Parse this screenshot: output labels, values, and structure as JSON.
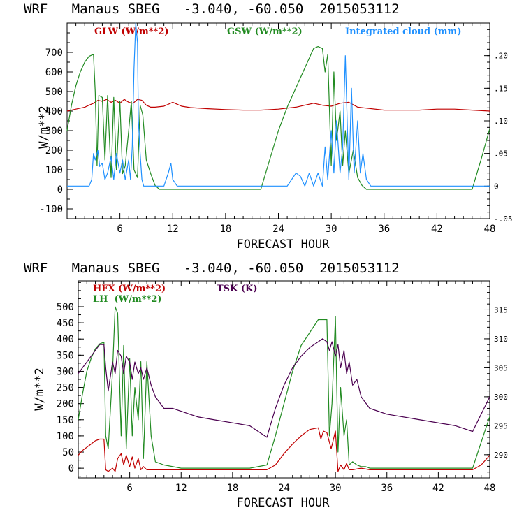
{
  "chart_data": [
    {
      "type": "line",
      "title": "WRF   Manaus SBEG   -3.040, -60.050  2015053112",
      "xlabel": "FORECAST HOUR",
      "ylabel": "W/m**2",
      "xlim": [
        0,
        48
      ],
      "ylim": [
        -150,
        850
      ],
      "x_ticks": [
        "6",
        "12",
        "18",
        "24",
        "30",
        "36",
        "42",
        "48"
      ],
      "y_ticks": [
        "-100",
        "0",
        "100",
        "200",
        "300",
        "400",
        "500",
        "600",
        "700"
      ],
      "right_axis": {
        "ylim": [
          -0.05,
          0.25
        ],
        "ticks": [
          "-.05",
          "0",
          ".05",
          ".10",
          ".15",
          ".20"
        ]
      },
      "series": [
        {
          "name": "GLW (W/m**2)",
          "color": "#c00000",
          "axis": "left",
          "x": [
            0,
            1,
            2,
            3,
            3.5,
            4,
            4.5,
            5,
            5.5,
            6,
            6.5,
            7,
            7.5,
            8,
            8.5,
            9,
            9.5,
            10,
            11,
            12,
            13,
            14,
            16,
            18,
            20,
            22,
            24,
            26,
            27,
            28,
            29,
            30,
            31,
            32,
            33,
            34,
            36,
            38,
            40,
            42,
            44,
            46,
            48
          ],
          "y": [
            400,
            410,
            420,
            440,
            455,
            450,
            460,
            445,
            455,
            440,
            460,
            445,
            440,
            460,
            455,
            430,
            420,
            420,
            425,
            445,
            425,
            418,
            412,
            408,
            405,
            405,
            410,
            420,
            430,
            440,
            430,
            425,
            440,
            445,
            420,
            415,
            405,
            405,
            405,
            410,
            410,
            405,
            400
          ]
        },
        {
          "name": "GSW (W/m**2)",
          "color": "#228b22",
          "axis": "left",
          "x": [
            0,
            0.5,
            1,
            1.5,
            2,
            2.5,
            3,
            3.2,
            3.4,
            3.6,
            4,
            4.3,
            4.6,
            5,
            5.3,
            5.6,
            6,
            6.3,
            6.6,
            7,
            7.3,
            7.6,
            8,
            8.3,
            8.6,
            9,
            9.5,
            10,
            10.5,
            11,
            22,
            23,
            24,
            25,
            26,
            27,
            28,
            28.5,
            29,
            29.3,
            29.6,
            30,
            30.3,
            30.6,
            31,
            31.3,
            31.6,
            32,
            32.5,
            33,
            33.5,
            34,
            46,
            47,
            48
          ],
          "y": [
            300,
            430,
            530,
            600,
            650,
            680,
            690,
            500,
            120,
            480,
            470,
            150,
            480,
            60,
            470,
            100,
            450,
            80,
            120,
            300,
            450,
            100,
            60,
            430,
            380,
            150,
            80,
            20,
            0,
            0,
            0,
            150,
            300,
            420,
            520,
            620,
            720,
            730,
            720,
            600,
            690,
            120,
            600,
            250,
            400,
            120,
            300,
            80,
            200,
            60,
            20,
            0,
            0,
            150,
            310
          ]
        },
        {
          "name": "Integrated cloud (mm)",
          "color": "#1e90ff",
          "axis": "right",
          "x": [
            0,
            1,
            2,
            2.5,
            2.8,
            3,
            3.2,
            3.5,
            3.7,
            4,
            4.3,
            4.6,
            5,
            5.3,
            5.6,
            6,
            6.3,
            6.6,
            7,
            7.2,
            7.4,
            7.6,
            7.8,
            8,
            8.1,
            8.3,
            8.5,
            8.7,
            9,
            9.5,
            10,
            11,
            11.5,
            11.8,
            12,
            12.5,
            13,
            24,
            25,
            25.5,
            26,
            26.5,
            27,
            27.5,
            28,
            28.5,
            29,
            29.3,
            29.6,
            30,
            30.3,
            30.6,
            31,
            31.3,
            31.6,
            32,
            32.3,
            32.6,
            33,
            33.3,
            33.6,
            34,
            34.5,
            48
          ],
          "y": [
            0,
            0,
            0,
            0,
            0.01,
            0.05,
            0.04,
            0.055,
            0.03,
            0.035,
            0.01,
            0.02,
            0.045,
            0.01,
            0.05,
            0.02,
            0.04,
            0.01,
            0.04,
            0.01,
            0.06,
            0.18,
            0.25,
            0.22,
            0.1,
            0.05,
            0.01,
            0,
            0,
            0,
            0,
            0,
            0.02,
            0.035,
            0.01,
            0,
            0,
            0,
            0,
            0.01,
            0.02,
            0.015,
            0,
            0.02,
            0,
            0.02,
            0,
            0.06,
            0.01,
            0.085,
            0.02,
            0.1,
            0.02,
            0.06,
            0.2,
            0.01,
            0.15,
            0.02,
            0.1,
            0.02,
            0.05,
            0.01,
            0,
            0
          ]
        }
      ]
    },
    {
      "type": "line",
      "title": "WRF   Manaus SBEG   -3.040, -60.050  2015053112",
      "xlabel": "FORECAST HOUR",
      "ylabel": "W/m**2",
      "xlim": [
        0,
        48
      ],
      "ylim": [
        -30,
        580
      ],
      "x_ticks": [
        "6",
        "12",
        "18",
        "24",
        "30",
        "36",
        "42",
        "48"
      ],
      "y_ticks": [
        "0",
        "50",
        "100",
        "150",
        "200",
        "250",
        "300",
        "350",
        "400",
        "450",
        "500"
      ],
      "right_axis": {
        "ylim": [
          286,
          320
        ],
        "ticks": [
          "290",
          "295",
          "300",
          "305",
          "310",
          "315"
        ]
      },
      "series": [
        {
          "name": "HFX (W/m**2)",
          "color": "#c00000",
          "axis": "left",
          "x": [
            0,
            0.5,
            1,
            1.5,
            2,
            2.5,
            3,
            3.2,
            3.5,
            4,
            4.3,
            4.6,
            5,
            5.3,
            5.6,
            6,
            6.3,
            6.6,
            7,
            7.3,
            7.6,
            8,
            9,
            10,
            12,
            14,
            16,
            18,
            20,
            22,
            23,
            24,
            25,
            26,
            27,
            28,
            28.3,
            28.6,
            29,
            29.5,
            30,
            30.3,
            30.6,
            31,
            31.3,
            31.6,
            32,
            33,
            34,
            36,
            40,
            44,
            46,
            47,
            48
          ],
          "y": [
            40,
            55,
            65,
            75,
            85,
            90,
            90,
            -5,
            -10,
            0,
            -10,
            30,
            45,
            10,
            40,
            5,
            35,
            0,
            30,
            -5,
            5,
            -5,
            -5,
            -5,
            -5,
            -5,
            -5,
            -5,
            -5,
            -5,
            10,
            45,
            75,
            100,
            120,
            125,
            90,
            115,
            110,
            60,
            115,
            -10,
            10,
            -5,
            15,
            -5,
            -5,
            0,
            -5,
            -5,
            -5,
            -5,
            -5,
            10,
            40
          ]
        },
        {
          "name": "LH  (W/m**2)",
          "color": "#228b22",
          "axis": "left",
          "x": [
            0,
            0.5,
            1,
            1.5,
            2,
            2.5,
            3,
            3.2,
            3.5,
            4,
            4.3,
            4.6,
            5,
            5.3,
            5.6,
            6,
            6.3,
            6.6,
            7,
            7.3,
            7.6,
            8,
            8.5,
            9,
            10,
            12,
            14,
            16,
            18,
            20,
            22,
            23,
            24,
            25,
            26,
            27,
            28,
            28.5,
            29,
            29.3,
            29.6,
            30,
            30.3,
            30.6,
            31,
            31.3,
            31.6,
            32,
            32.5,
            33,
            33.5,
            34,
            36,
            40,
            44,
            46,
            47,
            48
          ],
          "y": [
            150,
            230,
            300,
            340,
            370,
            385,
            390,
            100,
            60,
            300,
            500,
            480,
            100,
            380,
            60,
            340,
            100,
            250,
            150,
            330,
            30,
            330,
            100,
            20,
            10,
            0,
            0,
            0,
            0,
            0,
            10,
            100,
            200,
            300,
            380,
            420,
            460,
            460,
            460,
            100,
            200,
            470,
            50,
            250,
            100,
            150,
            10,
            20,
            10,
            5,
            5,
            0,
            0,
            0,
            0,
            0,
            80,
            160
          ]
        },
        {
          "name": "TSK (K)",
          "color": "#4b0050",
          "axis": "right",
          "x": [
            0,
            0.5,
            1,
            1.5,
            2,
            2.5,
            3,
            3.2,
            3.5,
            4,
            4.3,
            4.6,
            5,
            5.3,
            5.6,
            6,
            6.3,
            6.6,
            7,
            7.3,
            7.6,
            8,
            8.5,
            9,
            10,
            11,
            12,
            13,
            14,
            16,
            18,
            20,
            22,
            23,
            24,
            25,
            26,
            27,
            28,
            28.5,
            29,
            29.3,
            29.6,
            30,
            30.3,
            30.6,
            31,
            31.3,
            31.6,
            32,
            32.5,
            33,
            34,
            36,
            40,
            44,
            46,
            47,
            48
          ],
          "y": [
            304,
            305,
            306,
            307,
            308,
            309,
            309,
            305,
            301,
            306,
            304,
            308,
            307,
            304,
            307,
            306,
            303,
            306,
            304,
            305,
            303,
            305,
            302,
            300,
            298,
            298,
            297.5,
            297,
            296.5,
            296,
            295.5,
            295,
            293,
            298,
            302,
            305,
            307,
            308.5,
            309.5,
            310,
            309.5,
            308,
            309.5,
            307,
            309,
            305,
            308,
            304,
            306,
            302,
            303,
            300,
            298,
            297,
            296,
            295,
            294,
            297,
            300
          ]
        }
      ]
    }
  ]
}
